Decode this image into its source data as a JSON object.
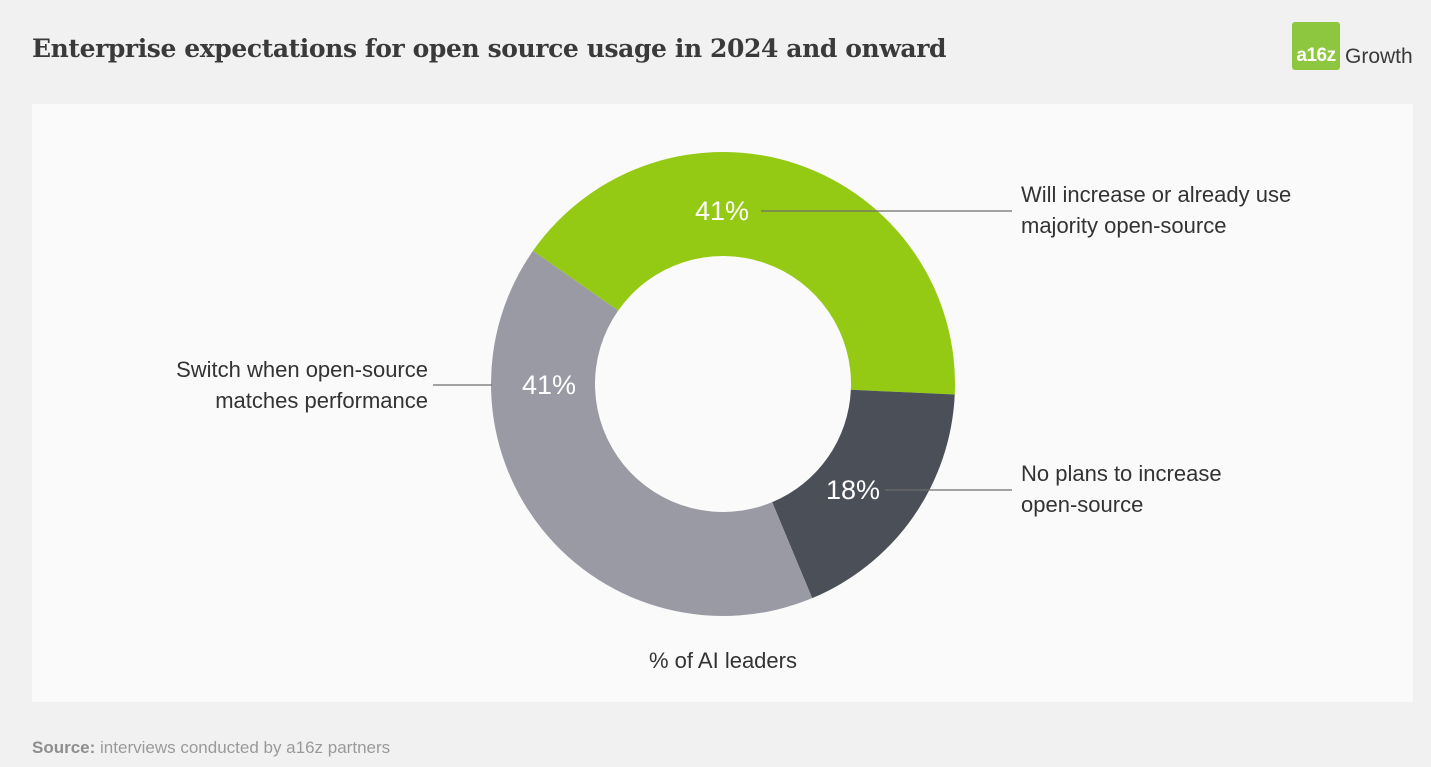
{
  "header": {
    "title": "Enterprise expectations for open source usage in 2024 and onward",
    "logo_mark": "a16z",
    "logo_word": "Growth",
    "logo_color": "#8dc63f"
  },
  "footer": {
    "source_label": "Source:",
    "source_text": "interviews conducted by a16z partners"
  },
  "chart_data": {
    "type": "pie",
    "style": "donut",
    "title": "",
    "caption": "% of AI leaders",
    "slices": [
      {
        "label_lines": [
          "Will increase or already use",
          "majority open-source"
        ],
        "value": 41,
        "value_label": "41%",
        "color": "#94ca14"
      },
      {
        "label_lines": [
          "No plans to increase",
          "open-source"
        ],
        "value": 18,
        "value_label": "18%",
        "color": "#4b4f58"
      },
      {
        "label_lines": [
          "Switch when open-source",
          "matches performance"
        ],
        "value": 41,
        "value_label": "41%",
        "color": "#9a9aa4"
      }
    ]
  }
}
